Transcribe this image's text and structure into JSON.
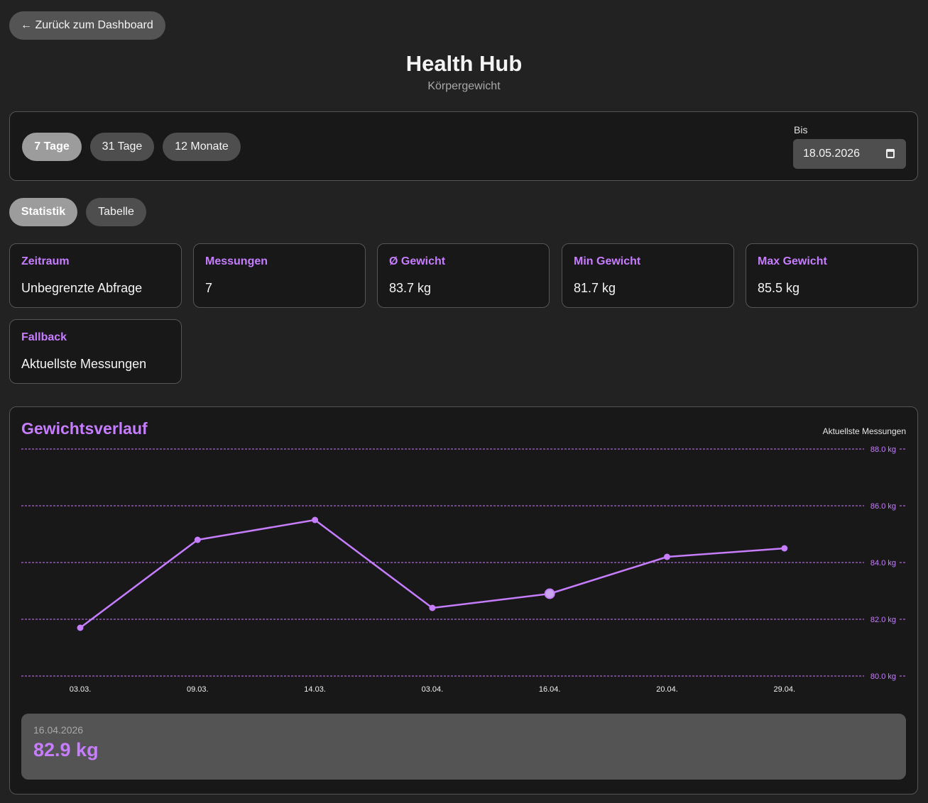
{
  "nav": {
    "back_label": "← Zurück zum Dashboard"
  },
  "header": {
    "title": "Health Hub",
    "subtitle": "Körpergewicht"
  },
  "filters": {
    "ranges": [
      {
        "label": "7 Tage",
        "active": true
      },
      {
        "label": "31 Tage",
        "active": false
      },
      {
        "label": "12 Monate",
        "active": false
      }
    ],
    "until_label": "Bis",
    "until_value": "18.05.2026"
  },
  "view_tabs": [
    {
      "label": "Statistik",
      "active": true
    },
    {
      "label": "Tabelle",
      "active": false
    }
  ],
  "stats": [
    {
      "label": "Zeitraum",
      "value": "Unbegrenzte Abfrage"
    },
    {
      "label": "Messungen",
      "value": "7"
    },
    {
      "label": "Ø Gewicht",
      "value": "83.7 kg"
    },
    {
      "label": "Min Gewicht",
      "value": "81.7 kg"
    },
    {
      "label": "Max Gewicht",
      "value": "85.5 kg"
    },
    {
      "label": "Fallback",
      "value": "Aktuellste Messungen"
    }
  ],
  "chart": {
    "title": "Gewichtsverlauf",
    "badge": "Aktuellste Messungen",
    "accent": "#c77dff"
  },
  "chart_data": {
    "type": "line",
    "categories": [
      "03.03.",
      "09.03.",
      "14.03.",
      "03.04.",
      "16.04.",
      "20.04.",
      "29.04."
    ],
    "values": [
      81.7,
      84.8,
      85.5,
      82.4,
      82.9,
      84.2,
      84.5
    ],
    "ylim": [
      80,
      88
    ],
    "yticks": [
      "88.0 kg",
      "86.0 kg",
      "84.0 kg",
      "82.0 kg",
      "80.0 kg"
    ],
    "ytick_values": [
      88,
      86,
      84,
      82,
      80
    ],
    "grid": true,
    "highlight_index": 4
  },
  "tooltip": {
    "date": "16.04.2026",
    "value": "82.9 kg"
  }
}
